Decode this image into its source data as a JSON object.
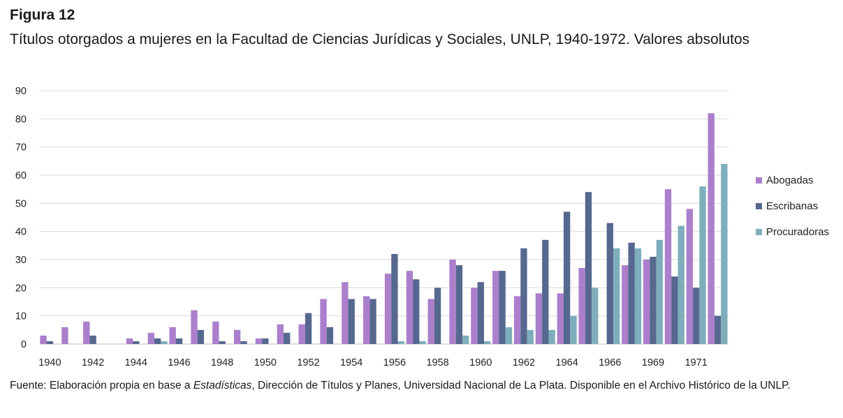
{
  "figure": {
    "label": "Figura 12",
    "title": "Títulos otorgados a mujeres en la Facultad de Ciencias Jurídicas y Sociales, UNLP, 1940-1972. Valores absolutos"
  },
  "footer": {
    "prefix": "Fuente: Elaboración propia en base a ",
    "italic": "Estadísticas",
    "suffix": ", Dirección de Títulos y Planes, Universidad Nacional de La Plata. Disponible en el Archivo Histórico de la UNLP."
  },
  "chart_data": {
    "type": "bar",
    "title": "",
    "xlabel": "",
    "ylabel": "",
    "ylim": [
      0,
      90
    ],
    "yticks": [
      0,
      10,
      20,
      30,
      40,
      50,
      60,
      70,
      80,
      90
    ],
    "grid": true,
    "legend_position": "right",
    "categories": [
      "1940",
      "1941",
      "1942",
      "1943",
      "1944",
      "1945",
      "1946",
      "1947",
      "1948",
      "1949",
      "1950",
      "1951",
      "1952",
      "1953",
      "1954",
      "1955",
      "1956",
      "1957",
      "1958",
      "1959",
      "1960",
      "1961",
      "1962",
      "1963",
      "1964",
      "1965",
      "1966",
      "1967",
      "1969",
      "1970",
      "1971",
      "1972"
    ],
    "x_tick_labels": [
      "1940",
      "",
      "1942",
      "",
      "1944",
      "",
      "1946",
      "",
      "1948",
      "",
      "1950",
      "",
      "1952",
      "",
      "1954",
      "",
      "1956",
      "",
      "1958",
      "",
      "1960",
      "",
      "1962",
      "",
      "1964",
      "",
      "1966",
      "",
      "1969",
      "",
      "1971",
      ""
    ],
    "series": [
      {
        "name": "Abogadas",
        "color": "#ab7fcc",
        "values": [
          3,
          6,
          8,
          0,
          2,
          4,
          6,
          12,
          8,
          5,
          2,
          7,
          7,
          16,
          22,
          17,
          25,
          26,
          16,
          30,
          20,
          26,
          17,
          18,
          18,
          27,
          0,
          28,
          30,
          55,
          48,
          82
        ]
      },
      {
        "name": "Escribanas",
        "color": "#56688f",
        "values": [
          1,
          0,
          3,
          0,
          1,
          2,
          2,
          5,
          1,
          1,
          2,
          4,
          11,
          6,
          16,
          16,
          32,
          23,
          20,
          28,
          22,
          26,
          34,
          37,
          47,
          54,
          43,
          36,
          31,
          24,
          20,
          10
        ]
      },
      {
        "name": "Procuradoras",
        "color": "#7eaebb",
        "values": [
          0,
          0,
          0,
          0,
          0,
          1,
          0,
          0,
          0,
          0,
          0,
          0,
          0,
          0,
          0,
          0,
          1,
          1,
          0,
          3,
          1,
          6,
          5,
          5,
          10,
          20,
          34,
          34,
          37,
          42,
          56,
          64
        ]
      }
    ]
  }
}
